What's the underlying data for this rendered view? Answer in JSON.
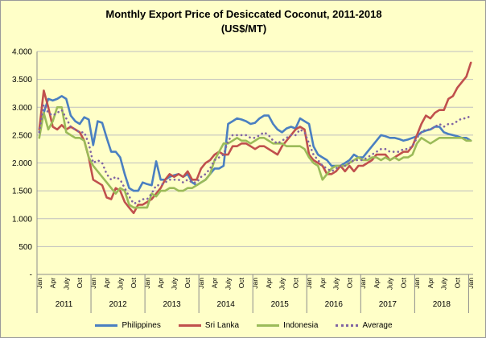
{
  "chart_data": {
    "type": "line",
    "title": "Monthly Export Price of Desiccated Coconut, 2011-2018",
    "subtitle": "(US$/MT)",
    "ylim": [
      0,
      4000
    ],
    "y_ticks": [
      "-",
      "500",
      "1.000",
      "1.500",
      "2.000",
      "2.500",
      "3.000",
      "3.500",
      "4.000"
    ],
    "grid": true,
    "legend_position": "bottom",
    "month_labels": [
      "Jan",
      "Apr",
      "July",
      "Oct"
    ],
    "years": [
      "2011",
      "2012",
      "2013",
      "2014",
      "2015",
      "2016",
      "2017",
      "2018"
    ],
    "x_start": "2011-01",
    "series": [
      {
        "name": "Philippines",
        "color": "#4a7fc1",
        "style": "solid",
        "values": [
          2550,
          2900,
          3150,
          3120,
          3150,
          3200,
          3150,
          2850,
          2750,
          2700,
          2820,
          2780,
          2320,
          2750,
          2720,
          2450,
          2200,
          2200,
          2100,
          1800,
          1550,
          1500,
          1500,
          1650,
          1620,
          1600,
          2030,
          1700,
          1700,
          1750,
          1780,
          1800,
          1750,
          1800,
          1650,
          1600,
          1650,
          1700,
          1800,
          1900,
          1900,
          1950,
          2700,
          2750,
          2800,
          2780,
          2750,
          2700,
          2720,
          2800,
          2850,
          2850,
          2700,
          2600,
          2550,
          2620,
          2650,
          2620,
          2800,
          2750,
          2700,
          2300,
          2150,
          2100,
          2050,
          1950,
          1950,
          1950,
          2000,
          2050,
          2150,
          2100,
          2100,
          2200,
          2300,
          2400,
          2500,
          2480,
          2450,
          2450,
          2430,
          2400,
          2420,
          2450,
          2480,
          2550,
          2580,
          2600,
          2650,
          2650,
          2550,
          2520,
          2500,
          2480,
          2450,
          2450,
          2400
        ]
      },
      {
        "name": "Sri Lanka",
        "color": "#c0504d",
        "style": "solid",
        "values": [
          2600,
          3300,
          3000,
          2650,
          2600,
          2680,
          2600,
          2650,
          2600,
          2550,
          2400,
          2100,
          1700,
          1650,
          1600,
          1380,
          1350,
          1550,
          1500,
          1300,
          1200,
          1100,
          1250,
          1250,
          1300,
          1350,
          1450,
          1550,
          1700,
          1800,
          1750,
          1800,
          1750,
          1850,
          1700,
          1700,
          1900,
          2000,
          2050,
          2150,
          2200,
          2150,
          2150,
          2300,
          2300,
          2350,
          2350,
          2300,
          2250,
          2300,
          2300,
          2250,
          2200,
          2150,
          2300,
          2400,
          2500,
          2600,
          2650,
          2600,
          2150,
          2050,
          2000,
          1950,
          1800,
          1800,
          1850,
          1950,
          1850,
          1950,
          1850,
          1950,
          1950,
          2000,
          2050,
          2150,
          2150,
          2150,
          2050,
          2100,
          2150,
          2200,
          2200,
          2300,
          2500,
          2700,
          2850,
          2800,
          2900,
          2950,
          2950,
          3150,
          3200,
          3350,
          3450,
          3550,
          3800
        ]
      },
      {
        "name": "Indonesia",
        "color": "#9bbb59",
        "style": "solid",
        "values": [
          2450,
          2900,
          2600,
          2750,
          3000,
          3000,
          2550,
          2500,
          2450,
          2450,
          2400,
          2100,
          1950,
          1850,
          1750,
          1650,
          1550,
          1450,
          1550,
          1500,
          1250,
          1200,
          1200,
          1200,
          1200,
          1450,
          1400,
          1500,
          1500,
          1550,
          1550,
          1500,
          1500,
          1550,
          1550,
          1600,
          1650,
          1700,
          1800,
          2050,
          2200,
          2350,
          2350,
          2400,
          2450,
          2400,
          2400,
          2350,
          2400,
          2450,
          2450,
          2400,
          2350,
          2350,
          2350,
          2300,
          2300,
          2300,
          2300,
          2250,
          2100,
          2000,
          1950,
          1700,
          1800,
          1900,
          1950,
          1950,
          1950,
          2000,
          2050,
          2100,
          2050,
          2050,
          2100,
          2100,
          2050,
          2100,
          2050,
          2100,
          2050,
          2100,
          2100,
          2150,
          2350,
          2450,
          2400,
          2350,
          2400,
          2450,
          2450,
          2450,
          2450,
          2450,
          2450,
          2400,
          2400
        ]
      },
      {
        "name": "Average",
        "color": "#8064a2",
        "style": "dotted",
        "values": [
          2550,
          3050,
          2900,
          2850,
          2900,
          2950,
          2800,
          2650,
          2600,
          2550,
          2550,
          2350,
          2000,
          2050,
          2000,
          1800,
          1700,
          1750,
          1700,
          1550,
          1400,
          1270,
          1300,
          1350,
          1350,
          1450,
          1600,
          1600,
          1650,
          1700,
          1700,
          1700,
          1650,
          1700,
          1650,
          1650,
          1750,
          1800,
          1900,
          2050,
          2100,
          2150,
          2400,
          2500,
          2500,
          2500,
          2500,
          2450,
          2450,
          2500,
          2550,
          2500,
          2400,
          2350,
          2400,
          2450,
          2500,
          2500,
          2600,
          2550,
          2350,
          2150,
          2050,
          1950,
          1900,
          1850,
          1900,
          1950,
          1950,
          2000,
          2050,
          2050,
          2050,
          2100,
          2150,
          2200,
          2250,
          2250,
          2200,
          2200,
          2200,
          2250,
          2250,
          2300,
          2450,
          2550,
          2600,
          2600,
          2650,
          2700,
          2650,
          2700,
          2700,
          2750,
          2800,
          2800,
          2850
        ]
      }
    ]
  }
}
